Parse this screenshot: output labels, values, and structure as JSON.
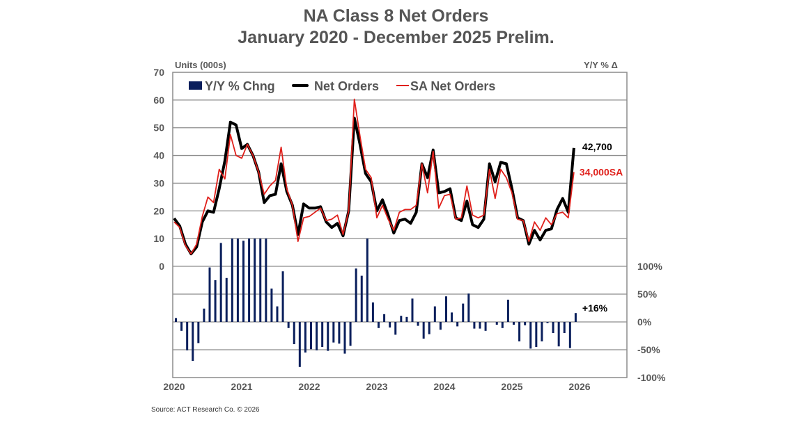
{
  "chart_data": {
    "type": "line",
    "title": "NA Class 8 Net Orders",
    "subtitle": "January 2020 - December 2025 Prelim.",
    "ylabel": "Units (000s)",
    "y2label": "Y/Y % Δ",
    "source": "Source: ACT Research Co. © 2026",
    "x_tick_labels": [
      "2020",
      "2021",
      "2022",
      "2023",
      "2024",
      "2025",
      "2026"
    ],
    "y_ticks": [
      0,
      10,
      20,
      30,
      40,
      50,
      60,
      70
    ],
    "y_tick_labels": [
      "0",
      "10",
      "20",
      "30",
      "40",
      "50",
      "60",
      "70"
    ],
    "ylim": [
      0,
      70
    ],
    "y2_ticks": [
      100,
      50,
      0,
      -50,
      -100
    ],
    "y2_tick_labels": [
      "100%",
      "50%",
      "0%",
      "-50%",
      "-100%"
    ],
    "y2lim": [
      -100,
      150
    ],
    "y2_clip_max": 150,
    "grid": true,
    "legend_position": "top-left",
    "start_month": "2020-01",
    "months_count": 72,
    "series": [
      {
        "name": "Y/Y % Chng",
        "type": "bar",
        "axis": "right",
        "color": "#0a1f5c",
        "values": [
          7,
          -16,
          -51,
          -70,
          -38,
          24,
          98,
          75,
          142,
          79,
          160,
          160,
          146,
          160,
          160,
          160,
          160,
          60,
          28,
          91,
          -11,
          -40,
          -81,
          -55,
          -49,
          -51,
          -45,
          -52,
          -37,
          -39,
          -57,
          -43,
          96,
          83,
          160,
          35,
          -11,
          14,
          -10,
          -23,
          11,
          9,
          42,
          -7,
          -30,
          -22,
          28,
          -14,
          46,
          17,
          -8,
          33,
          51,
          -12,
          -12,
          -16,
          0,
          -5,
          -11,
          40,
          -5,
          -35,
          -6,
          -48,
          -45,
          -35,
          -2,
          -20,
          -44,
          -20,
          -47,
          16
        ]
      },
      {
        "name": "Net Orders",
        "type": "line",
        "axis": "left",
        "color": "#000000",
        "values": [
          17.3,
          14.5,
          8,
          4.5,
          7,
          16,
          20,
          19.5,
          28,
          38,
          52,
          51,
          42.5,
          44,
          40,
          34,
          23,
          25.5,
          26,
          37,
          27,
          22,
          11.5,
          22.5,
          21,
          21,
          21.5,
          16,
          14,
          15.5,
          11,
          20,
          53.5,
          44,
          33.5,
          30.5,
          20,
          24,
          18.5,
          12,
          16.5,
          17,
          15.5,
          19.5,
          37,
          32,
          42,
          26.5,
          27,
          28,
          17.5,
          16.5,
          23.5,
          15,
          14,
          17,
          37,
          30.5,
          37.5,
          37,
          28,
          17.5,
          16.5,
          8,
          13,
          9.5,
          13,
          13.5,
          20.5,
          24.5,
          19.5,
          42.7
        ]
      },
      {
        "name": "SA Net Orders",
        "type": "line",
        "axis": "left",
        "color": "#e0201b",
        "values": [
          16,
          14,
          7.5,
          4.5,
          8,
          18,
          25,
          23,
          35,
          31.5,
          47.5,
          40,
          39,
          44,
          40,
          34,
          26,
          29,
          31,
          43,
          28,
          22,
          9,
          17.5,
          18,
          19.5,
          21,
          16.5,
          17,
          18.5,
          11.5,
          20,
          60.3,
          47,
          35,
          32,
          17.5,
          22,
          17,
          13,
          19.5,
          20.5,
          20.5,
          22,
          37,
          26.5,
          41.5,
          21,
          25.5,
          26,
          17,
          17.5,
          29,
          18.5,
          17.5,
          18.5,
          35,
          24.5,
          35,
          32,
          26.5,
          17,
          16.5,
          9,
          16,
          13,
          17.5,
          15,
          19,
          19.5,
          17.5,
          34
        ]
      }
    ],
    "annotations": [
      {
        "series": "Net Orders",
        "text": "42,700",
        "color": "#000000"
      },
      {
        "series": "SA Net Orders",
        "text": "34,000SA",
        "color": "#e0201b"
      },
      {
        "series": "Y/Y % Chng",
        "text": "+16%",
        "color": "#000000"
      }
    ]
  }
}
